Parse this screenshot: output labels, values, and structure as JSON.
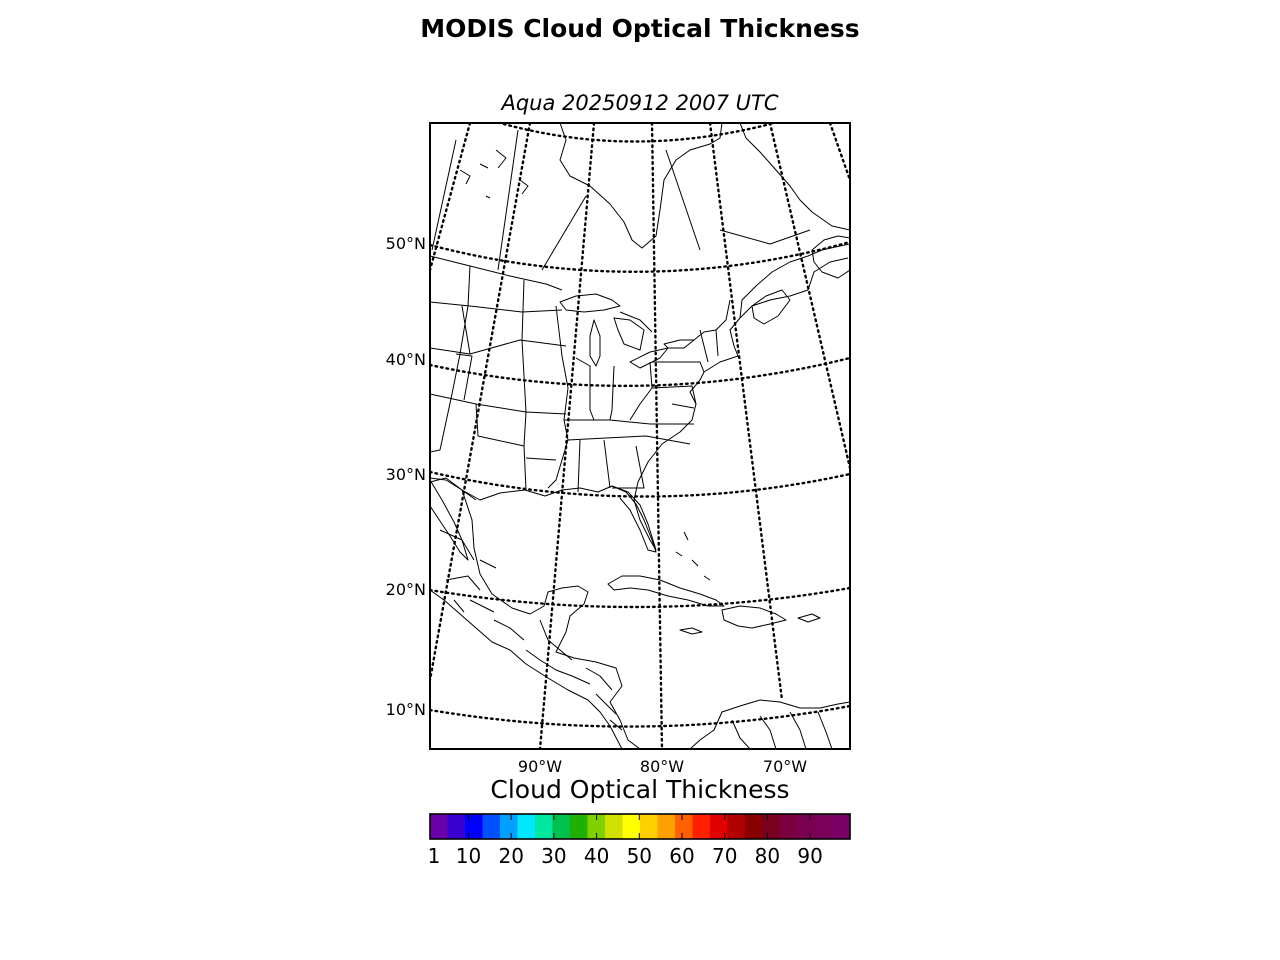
{
  "map": {
    "title": "MODIS Cloud Optical Thickness",
    "subtitle": "Aqua 20250912 2007 UTC",
    "projection": "lambert-conformal",
    "region": "Eastern North America, Gulf of Mexico and Caribbean",
    "graticule_style": "dotted",
    "latitude_labels": [
      "50°N",
      "40°N",
      "30°N",
      "20°N",
      "10°N"
    ],
    "longitude_labels": [
      "90°W",
      "80°W",
      "70°W"
    ],
    "features": [
      "coastlines",
      "country-borders",
      "us-state-borders",
      "canadian-province-borders"
    ]
  },
  "colorbar": {
    "title": "Cloud Optical Thickness",
    "tick_labels": [
      "1",
      "10",
      "20",
      "30",
      "40",
      "50",
      "60",
      "70",
      "80",
      "90"
    ],
    "colors": [
      "#6a00a8",
      "#3a00d0",
      "#0000ff",
      "#0050ff",
      "#00a0ff",
      "#00e8ff",
      "#00e8a0",
      "#00c050",
      "#20b000",
      "#80d000",
      "#d0e000",
      "#ffff00",
      "#ffd000",
      "#ffa000",
      "#ff6000",
      "#ff2000",
      "#e00000",
      "#b00000",
      "#880000",
      "#7a0020",
      "#7a0040",
      "#7a0050",
      "#7a005a",
      "#7a0068"
    ]
  }
}
